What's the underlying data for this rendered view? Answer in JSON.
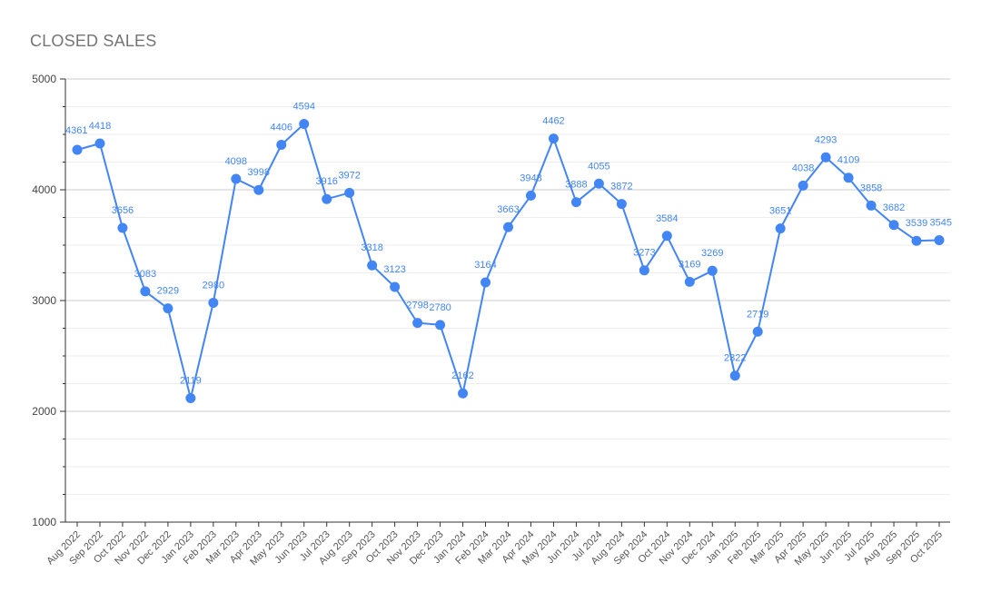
{
  "title": "CLOSED SALES",
  "colors": {
    "series": "#4285f4",
    "grid_major": "#cccccc",
    "grid_minor": "#eeeeee",
    "axis": "#333333",
    "title": "#757575"
  },
  "chart_data": {
    "type": "line",
    "title": "CLOSED SALES",
    "xlabel": "",
    "ylabel": "",
    "ylim": [
      1000,
      5000
    ],
    "y_ticks": [
      1000,
      2000,
      3000,
      4000,
      5000
    ],
    "grid": true,
    "legend": "none",
    "categories": [
      "Aug 2022",
      "Sep 2022",
      "Oct 2022",
      "Nov 2022",
      "Dec 2022",
      "Jan 2023",
      "Feb 2023",
      "Mar 2023",
      "Apr 2023",
      "May 2023",
      "Jun 2023",
      "Jul 2023",
      "Aug 2023",
      "Sep 2023",
      "Oct 2023",
      "Nov 2023",
      "Dec 2023",
      "Jan 2024",
      "Feb 2024",
      "Mar 2024",
      "Apr 2024",
      "May 2024",
      "Jun 2024",
      "Jul 2024",
      "Aug 2024",
      "Sep 2024",
      "Oct 2024",
      "Nov 2024",
      "Dec 2024",
      "Jan 2025",
      "Feb 2025",
      "Mar 2025",
      "Apr 2025",
      "May 2025",
      "Jun 2025",
      "Jul 2025",
      "Aug 2025",
      "Sep 2025",
      "Oct 2025"
    ],
    "series": [
      {
        "values": [
          4361,
          4418,
          3656,
          3083,
          2929,
          2119,
          2980,
          4098,
          3998,
          4406,
          4594,
          3916,
          3972,
          3318,
          3123,
          2798,
          2780,
          2162,
          3164,
          3663,
          3948,
          4462,
          3888,
          4055,
          3872,
          3273,
          3584,
          3169,
          3269,
          2322,
          2719,
          3651,
          4038,
          4293,
          4109,
          3858,
          3682,
          3539,
          3545
        ]
      }
    ]
  }
}
